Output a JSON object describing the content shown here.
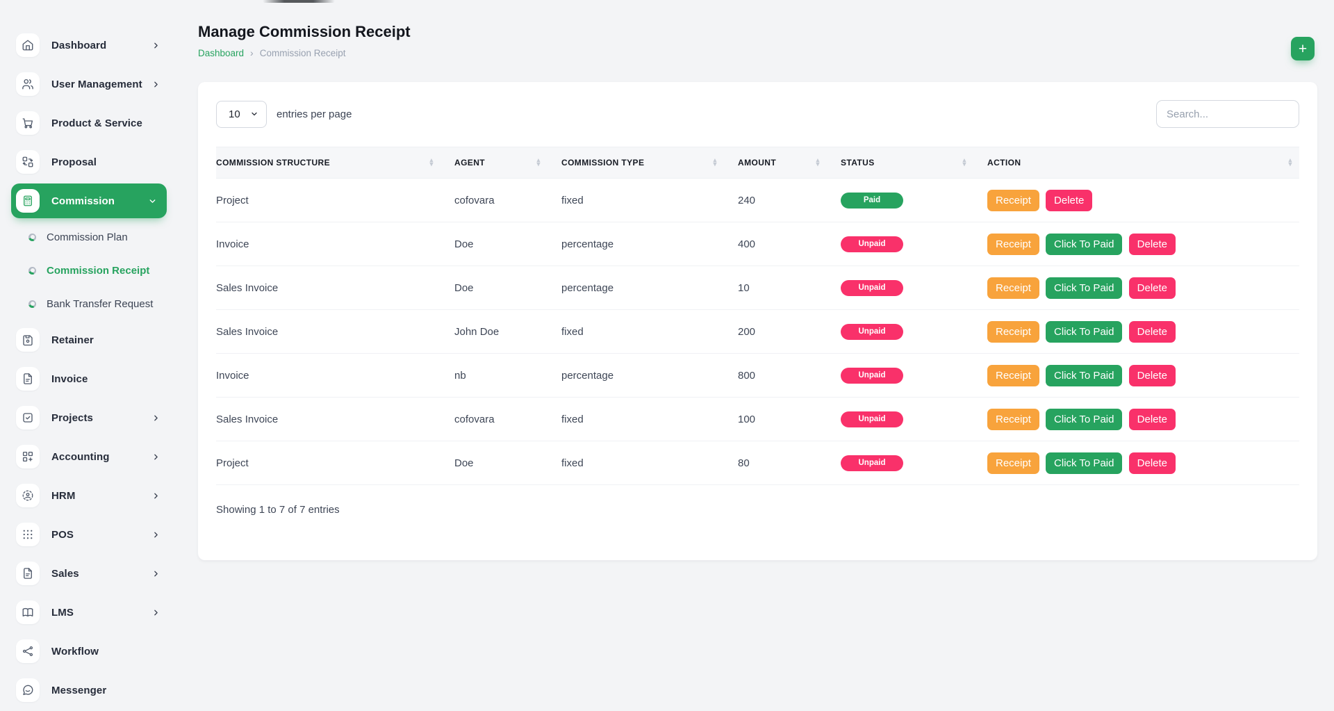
{
  "colors": {
    "primary_green": "#27a35f",
    "pink": "#f9316a",
    "orange": "#f8a33c",
    "background": "#f3f4f6"
  },
  "sidebar": {
    "items": [
      {
        "main": true,
        "label": "Dashboard",
        "icon": "home-icon",
        "chevRight": true
      },
      {
        "main": true,
        "label": "User Management",
        "icon": "users-icon",
        "chevRight": true
      },
      {
        "main": true,
        "label": "Product & Service",
        "icon": "cart-icon"
      },
      {
        "main": true,
        "label": "Proposal",
        "icon": "transform-icon"
      },
      {
        "main": true,
        "label": "Commission",
        "icon": "calculator-icon",
        "chevDown": true,
        "activeMain": "active"
      },
      {
        "sub": true,
        "label": "Commission Plan"
      },
      {
        "sub": true,
        "label": "Commission Receipt",
        "activeSub": "active"
      },
      {
        "sub": true,
        "label": "Bank Transfer Request"
      },
      {
        "main": true,
        "label": "Retainer",
        "icon": "save-icon"
      },
      {
        "main": true,
        "label": "Invoice",
        "icon": "file-icon"
      },
      {
        "main": true,
        "label": "Projects",
        "icon": "check-square-icon",
        "chevRight": true
      },
      {
        "main": true,
        "label": "Accounting",
        "icon": "grid-plus-icon",
        "chevRight": true
      },
      {
        "main": true,
        "label": "HRM",
        "icon": "user-crosshair-icon",
        "chevRight": true
      },
      {
        "main": true,
        "label": "POS",
        "icon": "dots-grid-icon",
        "chevRight": true
      },
      {
        "main": true,
        "label": "Sales",
        "icon": "file-icon",
        "chevRight": true
      },
      {
        "main": true,
        "label": "LMS",
        "icon": "book-icon",
        "chevRight": true
      },
      {
        "main": true,
        "label": "Workflow",
        "icon": "share-icon"
      },
      {
        "main": true,
        "label": "Messenger",
        "icon": "chat-icon"
      }
    ]
  },
  "header": {
    "title": "Manage Commission Receipt",
    "breadcrumb_home": "Dashboard",
    "breadcrumb_separator": "›",
    "breadcrumb_current": "Commission Receipt",
    "add_label": "+"
  },
  "toolbar": {
    "page_size": "10",
    "entries_label": "entries per page",
    "search_placeholder": "Search..."
  },
  "table": {
    "columns": [
      {
        "label": "COMMISSION STRUCTURE"
      },
      {
        "label": "AGENT"
      },
      {
        "label": "COMMISSION TYPE"
      },
      {
        "label": "AMOUNT"
      },
      {
        "label": "STATUS"
      },
      {
        "label": "ACTION"
      }
    ],
    "rows": [
      {
        "structure": "Project",
        "agent": "cofovara",
        "type": "fixed",
        "amount": "240",
        "status": "Paid",
        "status_class": "paid",
        "receipt": "Receipt",
        "delete": "Delete"
      },
      {
        "structure": "Invoice",
        "agent": "Doe",
        "type": "percentage",
        "amount": "400",
        "status": "Unpaid",
        "status_class": "unpaid",
        "receipt": "Receipt",
        "click_to_paid": "Click To Paid",
        "delete": "Delete"
      },
      {
        "structure": "Sales Invoice",
        "agent": "Doe",
        "type": "percentage",
        "amount": "10",
        "status": "Unpaid",
        "status_class": "unpaid",
        "receipt": "Receipt",
        "click_to_paid": "Click To Paid",
        "delete": "Delete"
      },
      {
        "structure": "Sales Invoice",
        "agent": "John Doe",
        "type": "fixed",
        "amount": "200",
        "status": "Unpaid",
        "status_class": "unpaid",
        "receipt": "Receipt",
        "click_to_paid": "Click To Paid",
        "delete": "Delete"
      },
      {
        "structure": "Invoice",
        "agent": "nb",
        "type": "percentage",
        "amount": "800",
        "status": "Unpaid",
        "status_class": "unpaid",
        "receipt": "Receipt",
        "click_to_paid": "Click To Paid",
        "delete": "Delete"
      },
      {
        "structure": "Sales Invoice",
        "agent": "cofovara",
        "type": "fixed",
        "amount": "100",
        "status": "Unpaid",
        "status_class": "unpaid",
        "receipt": "Receipt",
        "click_to_paid": "Click To Paid",
        "delete": "Delete"
      },
      {
        "structure": "Project",
        "agent": "Doe",
        "type": "fixed",
        "amount": "80",
        "status": "Unpaid",
        "status_class": "unpaid",
        "receipt": "Receipt",
        "click_to_paid": "Click To Paid",
        "delete": "Delete"
      }
    ],
    "footer": "Showing 1 to 7 of 7 entries"
  }
}
